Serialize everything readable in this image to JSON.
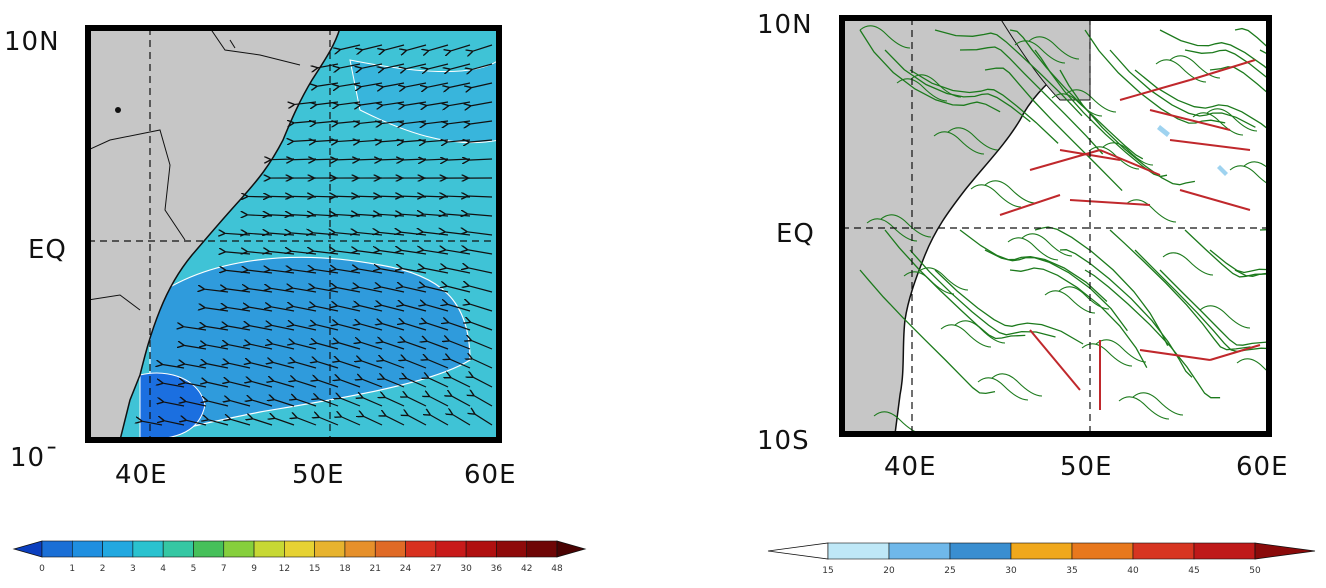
{
  "maps": [
    {
      "name": "left-panel",
      "lat_labels": [
        "10N",
        "EQ",
        "10¯"
      ],
      "lon_labels": [
        "40E",
        "50E",
        "60E"
      ],
      "colorbar": {
        "ticks": [
          "0",
          "1",
          "2",
          "3",
          "4",
          "5",
          "7",
          "9",
          "12",
          "15",
          "18",
          "21",
          "24",
          "27",
          "30",
          "36",
          "42",
          "48"
        ],
        "colors": [
          "#0b3fbf",
          "#1a6fd6",
          "#1f8fe0",
          "#22a8e0",
          "#2ac2cf",
          "#35c7a3",
          "#46c05a",
          "#86cf3c",
          "#c7d834",
          "#e6d233",
          "#e7b32e",
          "#e6902b",
          "#e06a26",
          "#d8311f",
          "#c81a1a",
          "#b01010",
          "#8e0a0a",
          "#6e0606",
          "#4a0303"
        ]
      }
    },
    {
      "name": "right-panel",
      "lat_labels": [
        "10N",
        "EQ",
        "10S"
      ],
      "lon_labels": [
        "40E",
        "50E",
        "60E"
      ],
      "colorbar": {
        "ticks": [
          "15",
          "20",
          "25",
          "30",
          "35",
          "40",
          "45",
          "50"
        ],
        "colors": [
          "#ffffff",
          "#bfe8f7",
          "#6fb8ea",
          "#3a8ed0",
          "#f0a81c",
          "#e8781d",
          "#d73521",
          "#bf1919",
          "#8a0a0a"
        ]
      }
    }
  ],
  "colors": {
    "land": "#c6c6c6",
    "ocean_left": "#3fc3d6",
    "ocean_left_dark": "#2f9bdc",
    "ocean_left_deep": "#1b6fe0",
    "ocean_right": "#ffffff",
    "streamline": "#1c7a1c",
    "jet": "#c0282c",
    "frame": "#000000",
    "arrow": "#111111"
  }
}
